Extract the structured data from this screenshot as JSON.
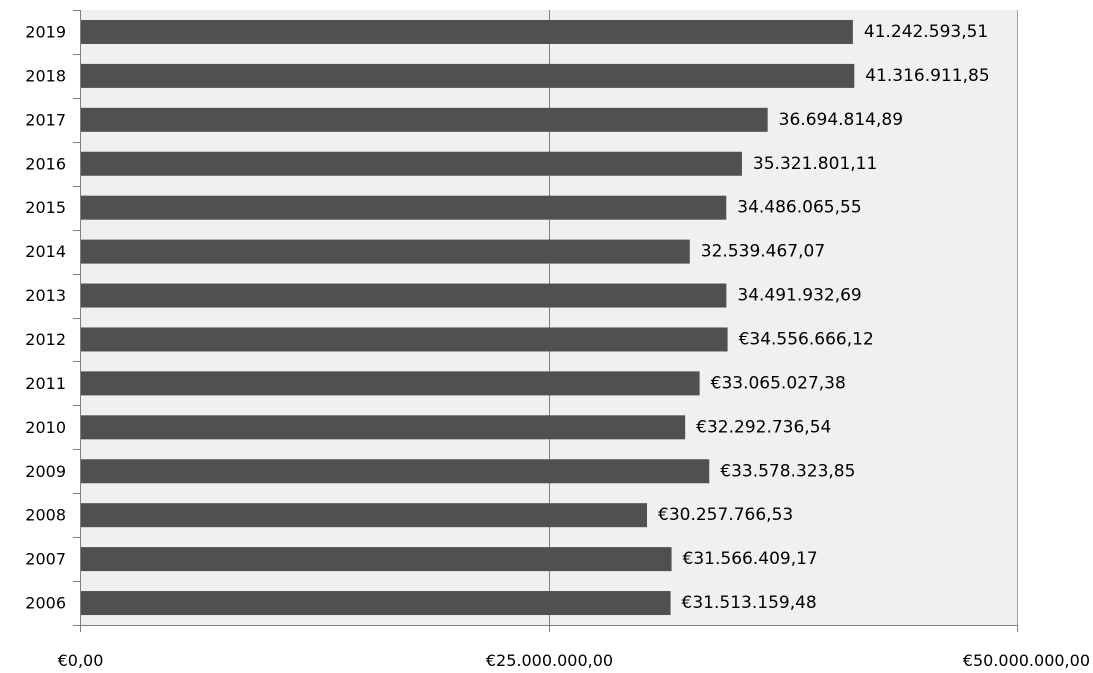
{
  "chart_data": {
    "type": "bar",
    "orientation": "horizontal",
    "title": "",
    "xlabel": "",
    "ylabel": "",
    "categories": [
      "2019",
      "2018",
      "2017",
      "2016",
      "2015",
      "2014",
      "2013",
      "2012",
      "2011",
      "2010",
      "2009",
      "2008",
      "2007",
      "2006"
    ],
    "values": [
      41242593.51,
      41316911.85,
      36694814.89,
      35321801.11,
      34486065.55,
      32539467.07,
      34491932.69,
      34556666.12,
      33065027.38,
      32292736.54,
      33578323.85,
      30257766.53,
      31566409.17,
      31513159.48
    ],
    "data_labels": [
      "41.242.593,51",
      "41.316.911,85",
      "36.694.814,89",
      "35.321.801,11",
      "34.486.065,55",
      "32.539.467,07",
      "34.491.932,69",
      "€34.556.666,12",
      "€33.065.027,38",
      "€32.292.736,54",
      "€33.578.323,85",
      "€30.257.766,53",
      "€31.566.409,17",
      "€31.513.159,48"
    ],
    "xlim": [
      0,
      50000000
    ],
    "x_ticks": [
      0,
      25000000,
      50000000
    ],
    "x_tick_labels": [
      "€0,00",
      "€25.000.000,00",
      "€50.000.000,00"
    ],
    "grid": true,
    "legend": "none",
    "colors": {
      "bar": "#505050",
      "plot_bg": "#f0f0f0",
      "gridline": "#808080",
      "axis": "#808080"
    }
  }
}
